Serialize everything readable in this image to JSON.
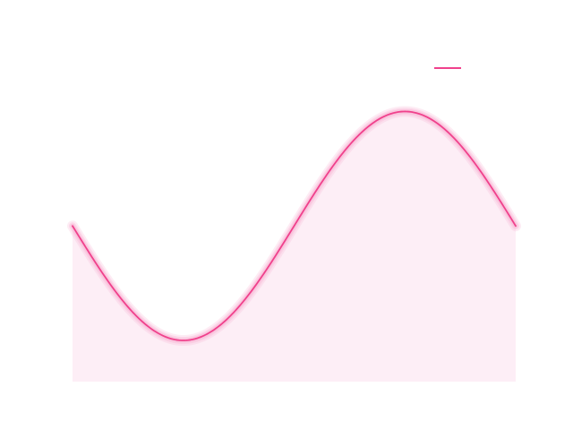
{
  "chart_data": {
    "type": "area",
    "title": "",
    "xlabel": "",
    "ylabel": "",
    "axes_visible": false,
    "grid": false,
    "legend": {
      "placement": "top-right",
      "entries": [
        {
          "label": "",
          "color": "#f0418c"
        }
      ]
    },
    "xlim": [
      0,
      4
    ],
    "ylim": [
      -1.36,
      1.52
    ],
    "series": [
      {
        "function": "sin",
        "x": [
          0.0,
          0.1,
          0.2,
          0.3,
          0.4,
          0.5,
          0.6,
          0.7,
          0.8,
          0.9,
          1.0,
          1.1,
          1.2,
          1.3,
          1.4,
          1.5,
          1.6,
          1.7,
          1.8,
          1.9,
          2.0,
          2.1,
          2.2,
          2.3,
          2.4,
          2.5,
          2.6,
          2.7,
          2.8,
          2.9,
          3.0,
          3.1,
          3.2,
          3.3,
          3.4,
          3.5,
          3.6,
          3.7,
          3.8,
          3.9,
          4.0
        ],
        "phase": 3.1416,
        "frequency": 1.5708,
        "amplitude": 1.0
      }
    ],
    "colors": {
      "line": "#f0418c",
      "glow": "#f8b4d4",
      "fill": "#fdeef6"
    }
  }
}
